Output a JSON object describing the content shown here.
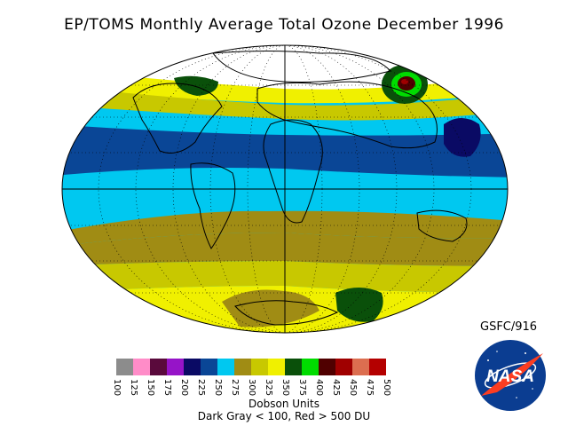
{
  "title": "EP/TOMS Monthly Average Total Ozone December 1996",
  "credit": "GSFC/916",
  "legend": {
    "items": [
      {
        "value": "100",
        "color": "#8c8c8c"
      },
      {
        "value": "125",
        "color": "#ff8cc8"
      },
      {
        "value": "150",
        "color": "#5a0a3c"
      },
      {
        "value": "175",
        "color": "#9614c8"
      },
      {
        "value": "200",
        "color": "#0a0a64"
      },
      {
        "value": "225",
        "color": "#0a4696"
      },
      {
        "value": "250",
        "color": "#00c8f0"
      },
      {
        "value": "275",
        "color": "#a08c14"
      },
      {
        "value": "300",
        "color": "#c8c800"
      },
      {
        "value": "325",
        "color": "#f0f000"
      },
      {
        "value": "350",
        "color": "#0a500a"
      },
      {
        "value": "375",
        "color": "#00dc00"
      },
      {
        "value": "400",
        "color": "#500000"
      },
      {
        "value": "425",
        "color": "#a00000"
      },
      {
        "value": "450",
        "color": "#dc6e50"
      },
      {
        "value": "475",
        "color": "#b40000"
      },
      {
        "value": "500",
        "color": "#b40000"
      }
    ],
    "units": "Dobson Units",
    "note": "Dark Gray < 100, Red > 500 DU"
  },
  "logo_text": "NASA"
}
